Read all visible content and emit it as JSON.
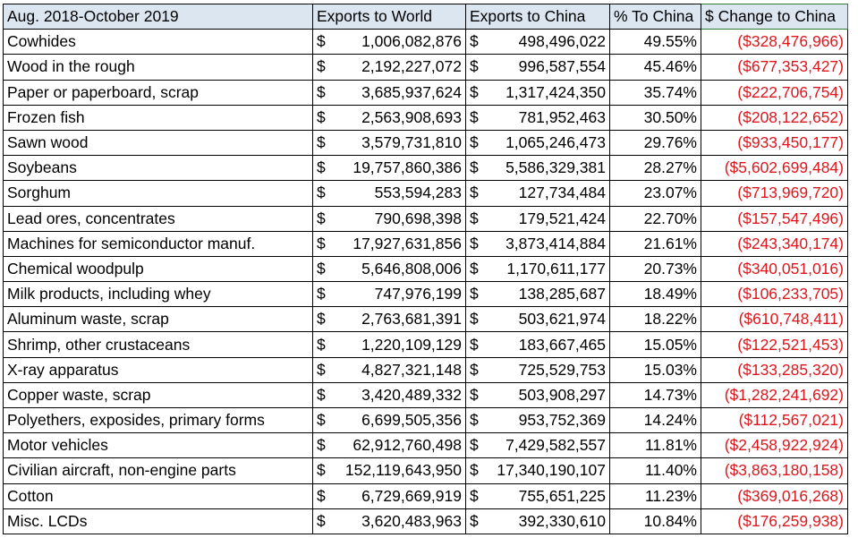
{
  "headers": [
    "Aug. 2018-October 2019",
    "Exports to World",
    "Exports to China",
    "% To China",
    "$ Change to China"
  ],
  "currency_symbol": "$",
  "colors": {
    "header_fill": "#dce6f1",
    "negative_text": "#e0151b",
    "active_cell_border": "#2e7d32"
  },
  "rows": [
    {
      "product": "Cowhides",
      "world": "1,006,082,876",
      "china": "498,496,022",
      "pct": "49.55%",
      "change": "($328,476,966)"
    },
    {
      "product": "Wood in the rough",
      "world": "2,192,227,072",
      "china": "996,587,554",
      "pct": "45.46%",
      "change": "($677,353,427)"
    },
    {
      "product": "Paper or paperboard, scrap",
      "world": "3,685,937,624",
      "china": "1,317,424,350",
      "pct": "35.74%",
      "change": "($222,706,754)"
    },
    {
      "product": "Frozen fish",
      "world": "2,563,908,693",
      "china": "781,952,463",
      "pct": "30.50%",
      "change": "($208,122,652)"
    },
    {
      "product": "Sawn wood",
      "world": "3,579,731,810",
      "china": "1,065,246,473",
      "pct": "29.76%",
      "change": "($933,450,177)"
    },
    {
      "product": "Soybeans",
      "world": "19,757,860,386",
      "china": "5,586,329,381",
      "pct": "28.27%",
      "change": "($5,602,699,484)"
    },
    {
      "product": "Sorghum",
      "world": "553,594,283",
      "china": "127,734,484",
      "pct": "23.07%",
      "change": "($713,969,720)"
    },
    {
      "product": "Lead ores, concentrates",
      "world": "790,698,398",
      "china": "179,521,424",
      "pct": "22.70%",
      "change": "($157,547,496)"
    },
    {
      "product": "Machines for semiconductor manuf.",
      "world": "17,927,631,856",
      "china": "3,873,414,884",
      "pct": "21.61%",
      "change": "($243,340,174)"
    },
    {
      "product": "Chemical woodpulp",
      "world": "5,646,808,006",
      "china": "1,170,611,177",
      "pct": "20.73%",
      "change": "($340,051,016)"
    },
    {
      "product": "Milk products, including whey",
      "world": "747,976,199",
      "china": "138,285,687",
      "pct": "18.49%",
      "change": "($106,233,705)"
    },
    {
      "product": "Aluminum waste, scrap",
      "world": "2,763,681,391",
      "china": "503,621,974",
      "pct": "18.22%",
      "change": "($610,748,411)"
    },
    {
      "product": "Shrimp, other crustaceans",
      "world": "1,220,109,129",
      "china": "183,667,465",
      "pct": "15.05%",
      "change": "($122,521,453)"
    },
    {
      "product": "X-ray apparatus",
      "world": "4,827,321,148",
      "china": "725,529,753",
      "pct": "15.03%",
      "change": "($133,285,320)"
    },
    {
      "product": "Copper waste, scrap",
      "world": "3,420,489,332",
      "china": "503,908,297",
      "pct": "14.73%",
      "change": "($1,282,241,692)"
    },
    {
      "product": "Polyethers, exposides, primary forms",
      "world": "6,699,505,356",
      "china": "953,752,369",
      "pct": "14.24%",
      "change": "($112,567,021)"
    },
    {
      "product": "Motor vehicles",
      "world": "62,912,760,498",
      "china": "7,429,582,557",
      "pct": "11.81%",
      "change": "($2,458,922,924)"
    },
    {
      "product": "Civilian aircraft, non-engine parts",
      "world": "152,119,643,950",
      "china": "17,340,190,107",
      "pct": "11.40%",
      "change": "($3,863,180,158)"
    },
    {
      "product": "Cotton",
      "world": "6,729,669,919",
      "china": "755,651,225",
      "pct": "11.23%",
      "change": "($369,016,268)"
    },
    {
      "product": "Misc. LCDs",
      "world": "3,620,483,963",
      "china": "392,330,610",
      "pct": "10.84%",
      "change": "($176,259,938)"
    }
  ]
}
